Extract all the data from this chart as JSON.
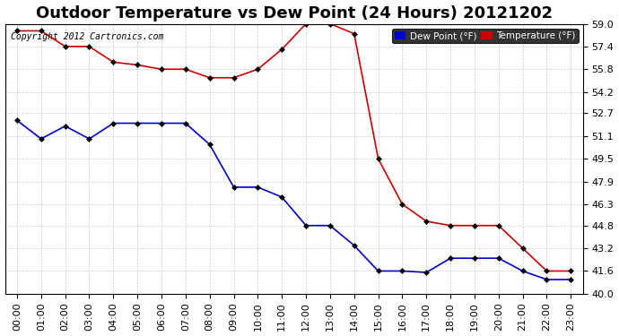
{
  "title": "Outdoor Temperature vs Dew Point (24 Hours) 20121202",
  "copyright": "Copyright 2012 Cartronics.com",
  "background_color": "#ffffff",
  "plot_bg_color": "#ffffff",
  "grid_color": "#cccccc",
  "ylim": [
    40.0,
    59.0
  ],
  "yticks": [
    40.0,
    41.6,
    43.2,
    44.8,
    46.3,
    47.9,
    49.5,
    51.1,
    52.7,
    54.2,
    55.8,
    57.4,
    59.0
  ],
  "hours": [
    "00:00",
    "01:00",
    "02:00",
    "03:00",
    "04:00",
    "05:00",
    "06:00",
    "07:00",
    "08:00",
    "09:00",
    "10:00",
    "11:00",
    "12:00",
    "13:00",
    "14:00",
    "15:00",
    "16:00",
    "17:00",
    "18:00",
    "19:00",
    "20:00",
    "21:00",
    "22:00",
    "23:00"
  ],
  "temperature": [
    58.5,
    58.5,
    57.4,
    57.4,
    56.3,
    56.1,
    55.8,
    55.8,
    55.2,
    55.2,
    55.8,
    57.2,
    59.0,
    59.0,
    58.3,
    49.5,
    46.3,
    45.1,
    44.8,
    44.8,
    44.8,
    43.2,
    41.6,
    41.6
  ],
  "dew_point": [
    52.2,
    50.9,
    51.8,
    50.9,
    52.0,
    52.0,
    52.0,
    52.0,
    50.5,
    47.5,
    47.5,
    46.8,
    44.8,
    44.8,
    43.4,
    41.6,
    41.6,
    41.5,
    42.5,
    42.5,
    42.5,
    41.6,
    41.0,
    41.0
  ],
  "temp_color": "#cc0000",
  "dew_color": "#0000cc",
  "marker": "D",
  "marker_size": 3,
  "legend_dew_bg": "#0000cc",
  "legend_temp_bg": "#cc0000",
  "title_fontsize": 13,
  "axis_fontsize": 8,
  "tick_fontsize": 8,
  "legend_dew_label": "Dew Point (°F)",
  "legend_temp_label": "Temperature (°F)"
}
